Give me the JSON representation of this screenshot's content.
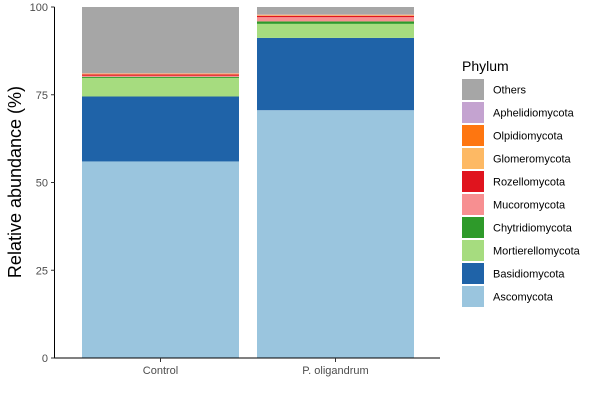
{
  "chart_data": {
    "type": "bar",
    "stacked": true,
    "categories": [
      "Control",
      "P. oligandrum"
    ],
    "ylabel": "Relative abundance (%)",
    "xlabel": "",
    "ylim": [
      0,
      100
    ],
    "yticks": [
      "0",
      "25",
      "50",
      "75",
      "100"
    ],
    "legend_title": "Phylum",
    "legend_position": "right",
    "series": [
      {
        "name": "Ascomycota",
        "color": "#9ac5de",
        "values": [
          56.0,
          70.6
        ]
      },
      {
        "name": "Basidiomycota",
        "color": "#1f63a8",
        "values": [
          18.5,
          20.6
        ]
      },
      {
        "name": "Mortierellomycota",
        "color": "#a6dc7f",
        "values": [
          5.3,
          4.0
        ]
      },
      {
        "name": "Chytridiomycota",
        "color": "#2e9a2a",
        "values": [
          0.3,
          0.7
        ]
      },
      {
        "name": "Mucoromycota",
        "color": "#f78f91",
        "values": [
          0.3,
          1.2
        ]
      },
      {
        "name": "Rozellomycota",
        "color": "#e0141e",
        "values": [
          0.4,
          0.4
        ]
      },
      {
        "name": "Glomeromycota",
        "color": "#fdb964",
        "values": [
          0.2,
          0.2
        ]
      },
      {
        "name": "Olpidiomycota",
        "color": "#fe7610",
        "values": [
          0.1,
          0.1
        ]
      },
      {
        "name": "Aphelidiomycota",
        "color": "#c4a3d0",
        "values": [
          0.1,
          0.1
        ]
      },
      {
        "name": "Others",
        "color": "#a6a6a6",
        "values": [
          18.8,
          2.1
        ]
      }
    ]
  }
}
